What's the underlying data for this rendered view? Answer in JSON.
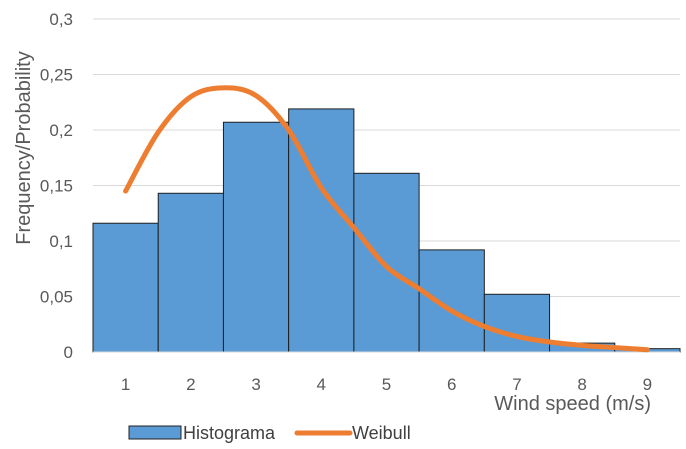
{
  "chart_data": {
    "type": "bar",
    "categories": [
      "1",
      "2",
      "3",
      "4",
      "5",
      "6",
      "7",
      "8",
      "9"
    ],
    "xlabel": "Wind speed (m/s)",
    "ylabel": "Frequency/Probability",
    "ylim": [
      0,
      0.3
    ],
    "y_ticks": [
      "0",
      "0,05",
      "0,1",
      "0,15",
      "0,2",
      "0,25",
      "0,3"
    ],
    "grid": true,
    "legend_position": "bottom-left",
    "series": [
      {
        "name": "Histograma",
        "type": "bar",
        "color": "#5B9BD5",
        "values": [
          0.116,
          0.143,
          0.207,
          0.219,
          0.161,
          0.092,
          0.052,
          0.008,
          0.003
        ]
      },
      {
        "name": "Weibull",
        "type": "line",
        "color": "#ED7D31",
        "x": [
          1,
          1.5,
          2,
          2.5,
          3,
          3.5,
          4,
          4.5,
          5,
          5.5,
          6,
          6.5,
          7,
          7.5,
          8,
          8.5,
          9
        ],
        "values": [
          0.145,
          0.198,
          0.23,
          0.238,
          0.231,
          0.2,
          0.148,
          0.112,
          0.077,
          0.057,
          0.037,
          0.023,
          0.014,
          0.009,
          0.006,
          0.004,
          0.002
        ]
      }
    ]
  }
}
